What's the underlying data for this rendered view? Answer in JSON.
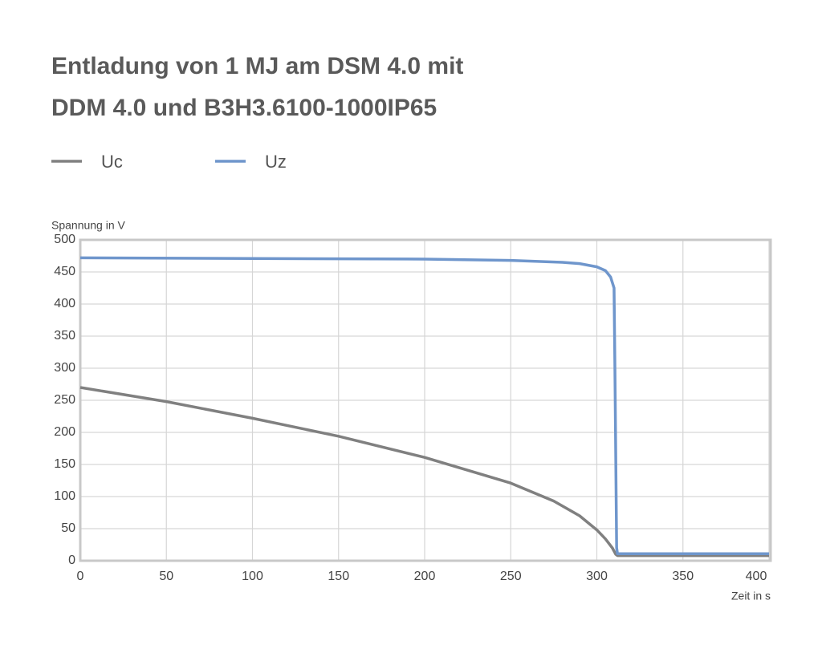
{
  "chart_data": {
    "type": "line",
    "title": [
      "Entladung von 1 MJ am DSM 4.0 mit",
      "DDM 4.0 und B3H3.6100-1000IP65"
    ],
    "y_label": "Spannung in V",
    "x_label": "Zeit in s",
    "xlim": [
      0,
      400
    ],
    "xticks": [
      0,
      50,
      100,
      150,
      200,
      250,
      300,
      350,
      400
    ],
    "ylim": [
      0,
      500
    ],
    "yticks": [
      0,
      50,
      100,
      150,
      200,
      250,
      300,
      350,
      400,
      450,
      500
    ],
    "grid": true,
    "series": [
      {
        "name": "Uc",
        "color": "#808080",
        "x": [
          0,
          50,
          100,
          150,
          200,
          250,
          275,
          290,
          300,
          305,
          309,
          311,
          312,
          400
        ],
        "values": [
          270,
          248,
          222,
          194,
          161,
          121,
          93,
          70,
          48,
          34,
          20,
          10,
          8,
          8
        ]
      },
      {
        "name": "Uz",
        "color": "#6f96cc",
        "x": [
          0,
          100,
          200,
          250,
          280,
          290,
          300,
          305,
          308,
          310,
          310.5,
          311.5,
          312,
          400
        ],
        "values": [
          472,
          471,
          470,
          468,
          465,
          463,
          458,
          452,
          442,
          425,
          300,
          20,
          11,
          11
        ]
      }
    ]
  }
}
